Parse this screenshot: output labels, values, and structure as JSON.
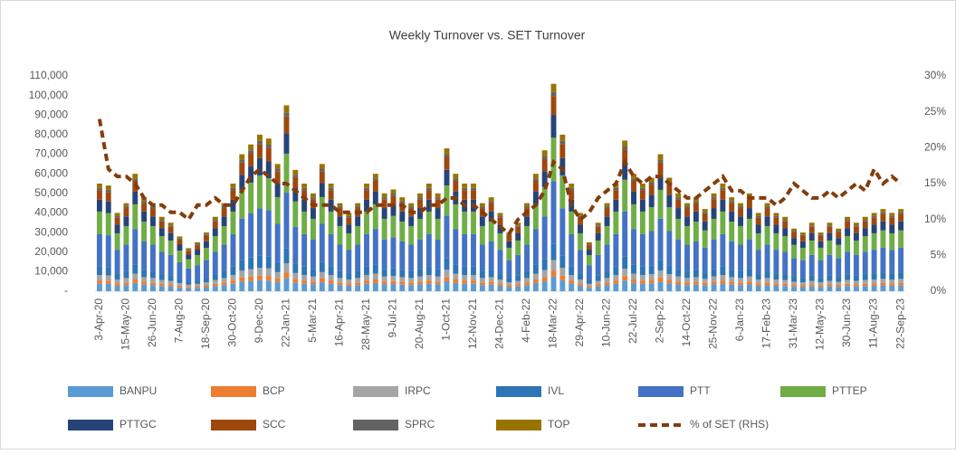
{
  "chart_data": {
    "type": "bar",
    "stacked": true,
    "title": "Weekly Turnover vs. SET Turnover",
    "categories": [
      "3-Apr-20",
      null,
      null,
      "15-May-20",
      null,
      null,
      "26-Jun-20",
      null,
      null,
      "7-Aug-20",
      null,
      null,
      "18-Sep-20",
      null,
      null,
      "30-Oct-20",
      null,
      null,
      "9-Dec-20",
      null,
      null,
      "22-Jan-21",
      null,
      null,
      "5-Mar-21",
      null,
      null,
      "16-Apr-21",
      null,
      null,
      "28-May-21",
      null,
      null,
      "9-Jul-21",
      null,
      null,
      "20-Aug-21",
      null,
      null,
      "1-Oct-21",
      null,
      null,
      "12-Nov-21",
      null,
      null,
      "24-Dec-21",
      null,
      null,
      "4-Feb-22",
      null,
      null,
      "18-Mar-22",
      null,
      null,
      "29-Apr-22",
      null,
      null,
      "10-Jun-22",
      null,
      null,
      "22-Jul-22",
      null,
      null,
      "2-Sep-22",
      null,
      null,
      "14-Oct-22",
      null,
      null,
      "25-Nov-22",
      null,
      null,
      "6-Jan-23",
      null,
      null,
      "17-Feb-23",
      null,
      null,
      "31-Mar-23",
      null,
      null,
      "12-May-23",
      null,
      null,
      "30-Jun-23",
      null,
      null,
      "11-Aug-23",
      null,
      null,
      "22-Sep-23"
    ],
    "series": [
      {
        "name": "BANPU",
        "color": "#5b9bd5",
        "values": [
          3850,
          3780,
          2800,
          3150,
          4200,
          3360,
          3150,
          2660,
          2450,
          1960,
          1540,
          1750,
          2100,
          2660,
          3150,
          3850,
          4900,
          5250,
          5600,
          5460,
          4550,
          6650,
          4340,
          3850,
          3500,
          4550,
          3850,
          3150,
          2800,
          3150,
          3850,
          4200,
          3500,
          3640,
          3360,
          3150,
          3500,
          3850,
          3500,
          5110,
          4200,
          3850,
          3850,
          3150,
          3360,
          2800,
          2100,
          2450,
          3150,
          4200,
          5040,
          7420,
          5600,
          3850,
          2800,
          1750,
          2450,
          3150,
          3850,
          5390,
          4200,
          3850,
          4060,
          4900,
          4060,
          3500,
          3150,
          3360,
          2940,
          3500,
          3850,
          3360,
          3150,
          3500,
          2800,
          3150,
          2800,
          2660,
          2240,
          2100,
          2450,
          2100,
          2450,
          2240,
          2660,
          2450,
          2660,
          2800,
          2940,
          2800,
          2940
        ]
      },
      {
        "name": "BCP",
        "color": "#ed7d31",
        "values": [
          1650,
          1620,
          1200,
          1350,
          1800,
          1440,
          1350,
          1140,
          1050,
          840,
          660,
          750,
          900,
          1140,
          1350,
          1650,
          2100,
          2250,
          2400,
          2340,
          1950,
          2850,
          1860,
          1650,
          1500,
          1950,
          1650,
          1350,
          1200,
          1350,
          1650,
          1800,
          1500,
          1560,
          1440,
          1350,
          1500,
          1650,
          1500,
          2190,
          1800,
          1650,
          1650,
          1350,
          1440,
          1200,
          900,
          1050,
          1350,
          1800,
          2160,
          3180,
          2400,
          1650,
          1200,
          750,
          1050,
          1350,
          1650,
          2310,
          1800,
          1650,
          1740,
          2100,
          1740,
          1500,
          1350,
          1440,
          1260,
          1500,
          1650,
          1440,
          1350,
          1500,
          1200,
          1350,
          1200,
          1140,
          960,
          900,
          1050,
          900,
          1050,
          960,
          1140,
          1050,
          1140,
          1200,
          1260,
          1200,
          1260
        ]
      },
      {
        "name": "IRPC",
        "color": "#a5a5a5",
        "values": [
          2750,
          2700,
          2000,
          2250,
          3000,
          2400,
          2250,
          1900,
          1750,
          1400,
          1100,
          1250,
          1500,
          1900,
          2250,
          2750,
          3500,
          3750,
          4000,
          3900,
          3250,
          4750,
          3100,
          2750,
          2500,
          3250,
          2750,
          2250,
          2000,
          2250,
          2750,
          3000,
          2500,
          2600,
          2400,
          2250,
          2500,
          2750,
          2500,
          3650,
          3000,
          2750,
          2750,
          2250,
          2400,
          2000,
          1500,
          1750,
          2250,
          3000,
          3600,
          5300,
          4000,
          2750,
          2000,
          1250,
          1750,
          2250,
          2750,
          3850,
          3000,
          2750,
          2900,
          3500,
          2900,
          2500,
          2250,
          2400,
          2100,
          2500,
          2750,
          2400,
          2250,
          2500,
          2000,
          2250,
          2000,
          1900,
          1600,
          1500,
          1750,
          1500,
          1750,
          1600,
          1900,
          1750,
          1900,
          2000,
          2100,
          2000,
          2100
        ]
      },
      {
        "name": "IVL",
        "color": "#2e75b6",
        "values": [
          4400,
          4320,
          3200,
          3600,
          4800,
          3840,
          3600,
          3040,
          2800,
          2240,
          1760,
          2000,
          2400,
          3040,
          3600,
          4400,
          5600,
          6000,
          6400,
          6240,
          5200,
          7600,
          4960,
          4400,
          4000,
          5200,
          4400,
          3600,
          3200,
          3600,
          4400,
          4800,
          4000,
          4160,
          3840,
          3600,
          4000,
          4400,
          4000,
          5840,
          4800,
          4400,
          4400,
          3600,
          3840,
          3200,
          2400,
          2800,
          3600,
          4800,
          5760,
          8480,
          6400,
          4400,
          3200,
          2000,
          2800,
          3600,
          4400,
          6160,
          4800,
          4400,
          4640,
          5600,
          4640,
          4000,
          3600,
          3840,
          3360,
          4000,
          4400,
          3840,
          3600,
          4000,
          3200,
          3600,
          3200,
          3040,
          2560,
          2400,
          2800,
          2400,
          2800,
          2560,
          3040,
          2800,
          3040,
          3200,
          3360,
          3200,
          3360
        ]
      },
      {
        "name": "PTT",
        "color": "#4472c4",
        "values": [
          16500,
          16200,
          12000,
          13500,
          18000,
          14400,
          13500,
          11400,
          10500,
          8400,
          6600,
          7500,
          9000,
          11400,
          13500,
          16500,
          21000,
          22500,
          24000,
          23400,
          19500,
          28500,
          18600,
          16500,
          15000,
          19500,
          16500,
          13500,
          12000,
          13500,
          16500,
          18000,
          15000,
          15600,
          14400,
          13500,
          15000,
          16500,
          15000,
          21900,
          18000,
          16500,
          16500,
          13500,
          14400,
          12000,
          9000,
          10500,
          13500,
          18000,
          21600,
          31800,
          24000,
          16500,
          12000,
          7500,
          10500,
          13500,
          16500,
          23100,
          18000,
          16500,
          17400,
          21000,
          17400,
          15000,
          13500,
          14400,
          12600,
          15000,
          16500,
          14400,
          13500,
          15000,
          12000,
          13500,
          12000,
          11400,
          9600,
          9000,
          10500,
          9000,
          10500,
          9600,
          11400,
          10500,
          11400,
          12000,
          12600,
          12000,
          12600
        ]
      },
      {
        "name": "PTTEP",
        "color": "#70ad47",
        "values": [
          11550,
          11340,
          8400,
          9450,
          12600,
          10080,
          9450,
          7980,
          7350,
          5880,
          4620,
          5250,
          6300,
          7980,
          9450,
          11550,
          14700,
          15750,
          16800,
          16380,
          13650,
          19950,
          13020,
          11550,
          10500,
          13650,
          11550,
          9450,
          8400,
          9450,
          11550,
          12600,
          10500,
          10920,
          10080,
          9450,
          10500,
          11550,
          10500,
          15330,
          12600,
          11550,
          11550,
          9450,
          10080,
          8400,
          6300,
          7350,
          9450,
          12600,
          15120,
          22260,
          16800,
          11550,
          8400,
          5250,
          7350,
          9450,
          11550,
          16170,
          12600,
          11550,
          12180,
          14700,
          12180,
          10500,
          9450,
          10080,
          8820,
          10500,
          11550,
          10080,
          9450,
          10500,
          8400,
          9450,
          8400,
          7980,
          6720,
          6300,
          7350,
          6300,
          7350,
          6720,
          7980,
          7350,
          7980,
          8400,
          8820,
          8400,
          8820
        ]
      },
      {
        "name": "PTTGC",
        "color": "#264478",
        "values": [
          6050,
          5940,
          4400,
          4950,
          6600,
          5280,
          4950,
          4180,
          3850,
          3080,
          2420,
          2750,
          3300,
          4180,
          4950,
          6050,
          7700,
          8250,
          8800,
          8580,
          7150,
          10450,
          6820,
          6050,
          5500,
          7150,
          6050,
          4950,
          4400,
          4950,
          6050,
          6600,
          5500,
          5720,
          5280,
          4950,
          5500,
          6050,
          5500,
          8030,
          6600,
          6050,
          6050,
          4950,
          5280,
          4400,
          3300,
          3850,
          4950,
          6600,
          7920,
          11660,
          8800,
          6050,
          4400,
          2750,
          3850,
          4950,
          6050,
          8470,
          6600,
          6050,
          6380,
          7700,
          6380,
          5500,
          4950,
          5280,
          4620,
          5500,
          6050,
          5280,
          4950,
          5500,
          4400,
          4950,
          4400,
          4180,
          3520,
          3300,
          3850,
          3300,
          3850,
          3520,
          4180,
          3850,
          4180,
          4400,
          4620,
          4400,
          4620
        ]
      },
      {
        "name": "SCC",
        "color": "#9e480e",
        "values": [
          4950,
          4860,
          3600,
          4050,
          5400,
          4320,
          4050,
          3420,
          3150,
          2520,
          1980,
          2250,
          2700,
          3420,
          4050,
          4950,
          6300,
          6750,
          7200,
          7020,
          5850,
          8550,
          5580,
          4950,
          4500,
          5850,
          4950,
          4050,
          3600,
          4050,
          4950,
          5400,
          4500,
          4680,
          4320,
          4050,
          4500,
          4950,
          4500,
          6570,
          5400,
          4950,
          4950,
          4050,
          4320,
          3600,
          2700,
          3150,
          4050,
          5400,
          6480,
          9540,
          7200,
          4950,
          3600,
          2250,
          3150,
          4050,
          4950,
          6930,
          5400,
          4950,
          5220,
          6300,
          5220,
          4500,
          4050,
          4320,
          3780,
          4500,
          4950,
          4320,
          4050,
          4500,
          3600,
          4050,
          3600,
          3420,
          2880,
          2700,
          3150,
          2700,
          3150,
          2880,
          3420,
          3150,
          3420,
          3600,
          3780,
          3600,
          3780
        ]
      },
      {
        "name": "SPRC",
        "color": "#636363",
        "values": [
          1100,
          1080,
          800,
          900,
          1200,
          960,
          900,
          760,
          700,
          560,
          440,
          500,
          600,
          760,
          900,
          1100,
          1400,
          1500,
          1600,
          1560,
          1300,
          1900,
          1240,
          1100,
          1000,
          1300,
          1100,
          900,
          800,
          900,
          1100,
          1200,
          1000,
          1040,
          960,
          900,
          1000,
          1100,
          1000,
          1460,
          1200,
          1100,
          1100,
          900,
          960,
          800,
          600,
          700,
          900,
          1200,
          1440,
          2120,
          1600,
          1100,
          800,
          500,
          700,
          900,
          1100,
          1540,
          1200,
          1100,
          1160,
          1400,
          1160,
          1000,
          900,
          960,
          840,
          1000,
          1100,
          960,
          900,
          1000,
          800,
          900,
          800,
          760,
          640,
          600,
          700,
          600,
          700,
          640,
          760,
          700,
          760,
          800,
          840,
          800,
          840
        ]
      },
      {
        "name": "TOP",
        "color": "#997300",
        "values": [
          2200,
          2160,
          1600,
          1800,
          2400,
          1920,
          1800,
          1520,
          1400,
          1120,
          880,
          1000,
          1200,
          1520,
          1800,
          2200,
          2800,
          3000,
          3200,
          3120,
          2600,
          3800,
          2480,
          2200,
          2000,
          2600,
          2200,
          1800,
          1600,
          1800,
          2200,
          2400,
          2000,
          2080,
          1920,
          1800,
          2000,
          2200,
          2000,
          2920,
          2400,
          2200,
          2200,
          1800,
          1920,
          1600,
          1200,
          1400,
          1800,
          2400,
          2880,
          4240,
          3200,
          2200,
          1600,
          1000,
          1400,
          1800,
          2200,
          3080,
          2400,
          2200,
          2320,
          2800,
          2320,
          2000,
          1800,
          1920,
          1680,
          2000,
          2200,
          1920,
          1800,
          2000,
          1600,
          1800,
          1600,
          1520,
          1280,
          1200,
          1400,
          1200,
          1400,
          1280,
          1520,
          1400,
          1520,
          1600,
          1680,
          1600,
          1680
        ]
      },
      {
        "name": "% of SET (RHS)",
        "color": "#843c0c",
        "type": "line",
        "dashed": true,
        "axis": "y2",
        "values": [
          24,
          17,
          16,
          16,
          15,
          13,
          12,
          12,
          11,
          11,
          10,
          12,
          12,
          13,
          12,
          12,
          14,
          16,
          17,
          16,
          15,
          15,
          14,
          13,
          12,
          12,
          12,
          11,
          11,
          11,
          11,
          12,
          12,
          12,
          12,
          11,
          11,
          12,
          12,
          13,
          13,
          12,
          12,
          11,
          10,
          9,
          8,
          10,
          11,
          12,
          14,
          18,
          17,
          12,
          10,
          11,
          13,
          14,
          15,
          18,
          16,
          15,
          16,
          16,
          15,
          14,
          13,
          13,
          14,
          15,
          16,
          14,
          14,
          13,
          13,
          13,
          12,
          13,
          15,
          14,
          13,
          13,
          14,
          13,
          14,
          15,
          14,
          17,
          15,
          16,
          15
        ]
      }
    ],
    "ylim": [
      0,
      110000
    ],
    "yticks": [
      {
        "value": 0,
        "label": "-"
      },
      {
        "value": 10000,
        "label": "10,000"
      },
      {
        "value": 20000,
        "label": "20,000"
      },
      {
        "value": 30000,
        "label": "30,000"
      },
      {
        "value": 40000,
        "label": "40,000"
      },
      {
        "value": 50000,
        "label": "50,000"
      },
      {
        "value": 60000,
        "label": "60,000"
      },
      {
        "value": 70000,
        "label": "70,000"
      },
      {
        "value": 80000,
        "label": "80,000"
      },
      {
        "value": 90000,
        "label": "90,000"
      },
      {
        "value": 100000,
        "label": "100,000"
      },
      {
        "value": 110000,
        "label": "110,000"
      }
    ],
    "y2lim": [
      0,
      30
    ],
    "y2ticks": [
      {
        "value": 0,
        "label": "0%"
      },
      {
        "value": 5,
        "label": "5%"
      },
      {
        "value": 10,
        "label": "10%"
      },
      {
        "value": 15,
        "label": "15%"
      },
      {
        "value": 20,
        "label": "20%"
      },
      {
        "value": 25,
        "label": "25%"
      },
      {
        "value": 30,
        "label": "30%"
      }
    ],
    "grid": false,
    "legend": "bottom"
  }
}
